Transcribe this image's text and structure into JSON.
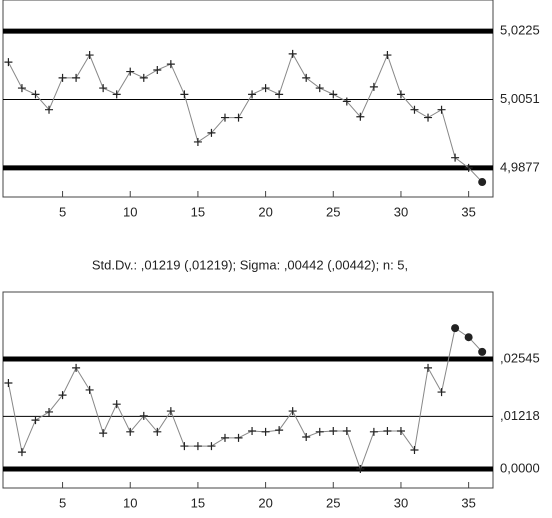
{
  "chart_data": [
    {
      "type": "line",
      "color": "#555",
      "x": [
        1,
        2,
        3,
        4,
        5,
        6,
        7,
        8,
        9,
        10,
        11,
        12,
        13,
        14,
        15,
        16,
        17,
        18,
        19,
        20,
        21,
        22,
        23,
        24,
        25,
        26,
        27,
        28,
        29,
        30,
        31,
        32,
        33,
        34,
        35,
        36
      ],
      "values": [
        5.0146,
        5.008,
        5.0064,
        5.0025,
        5.0106,
        5.0106,
        5.0164,
        5.008,
        5.0064,
        5.0122,
        5.0106,
        5.0126,
        5.0141,
        5.0064,
        4.9943,
        4.9966,
        5.0005,
        5.0005,
        5.0064,
        5.008,
        5.0064,
        5.0167,
        5.0106,
        5.008,
        5.0064,
        5.0046,
        5.0007,
        5.0083,
        5.0164,
        5.0064,
        5.0025,
        5.0005,
        5.0025,
        4.9903,
        4.9877,
        4.9841
      ],
      "xlim": [
        0.6,
        36.8
      ],
      "xticks": [
        5,
        10,
        15,
        20,
        25,
        30,
        35
      ],
      "ylim": [
        4.9803,
        5.0304
      ],
      "yticks": [
        {
          "value": 4.9877,
          "label": "4,9877"
        },
        {
          "value": 5.0051,
          "label": "5,0051"
        },
        {
          "value": 5.0225,
          "label": "5,0225"
        }
      ]
    },
    {
      "type": "line",
      "color": "#555",
      "title": "Std.Dv.: ,01219 (,01219); Sigma: ,00442 (,00442); n: 5,",
      "x": [
        1,
        2,
        3,
        4,
        5,
        6,
        7,
        8,
        9,
        10,
        11,
        12,
        13,
        14,
        15,
        16,
        17,
        18,
        19,
        20,
        21,
        22,
        23,
        24,
        25,
        26,
        27,
        28,
        29,
        30,
        31,
        32,
        33,
        34,
        35,
        36
      ],
      "values": [
        0.0199,
        0.0039,
        0.0113,
        0.0132,
        0.0171,
        0.0234,
        0.0183,
        0.0083,
        0.015,
        0.0086,
        0.0123,
        0.0086,
        0.0134,
        0.0053,
        0.0053,
        0.0053,
        0.0072,
        0.0072,
        0.0088,
        0.0086,
        0.009,
        0.0134,
        0.0074,
        0.0086,
        0.0088,
        0.0088,
        0,
        0.0086,
        0.0088,
        0.0088,
        0.0044,
        0.0234,
        0.0178,
        0.0326,
        0.0305,
        0.0271
      ],
      "xlim": [
        0.6,
        36.8
      ],
      "xticks": [
        5,
        10,
        15,
        20,
        25,
        30,
        35
      ],
      "ylim": [
        -0.0044,
        0.04096
      ],
      "yticks": [
        {
          "value": 0,
          "label": "0,0000"
        },
        {
          "value": 0.01218,
          "label": ",01218"
        },
        {
          "value": 0.02545,
          "label": ",02545"
        }
      ]
    }
  ]
}
